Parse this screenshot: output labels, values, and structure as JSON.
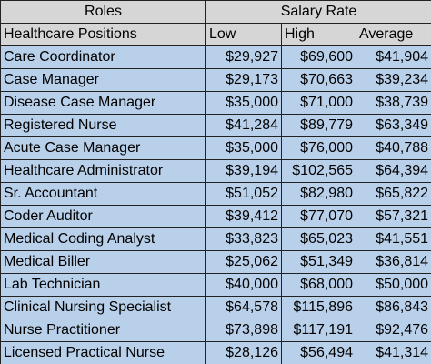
{
  "table": {
    "group_headers": [
      "Roles",
      "Salary Rate"
    ],
    "columns": [
      "Healthcare Positions",
      "Low",
      "High",
      "Average"
    ],
    "rows": [
      [
        "Care Coordinator",
        "$29,927",
        "$69,600",
        "$41,904"
      ],
      [
        "Case Manager",
        "$29,173",
        "$70,663",
        "$39,234"
      ],
      [
        "Disease Case Manager",
        "$35,000",
        "$71,000",
        "$38,739"
      ],
      [
        "Registered Nurse",
        "$41,284",
        "$89,779",
        "$63,349"
      ],
      [
        "Acute Case Manager",
        "$35,000",
        "$76,000",
        "$40,788"
      ],
      [
        "Healthcare Administrator",
        "$39,194",
        "$102,565",
        "$64,394"
      ],
      [
        "Sr. Accountant",
        "$51,052",
        "$82,980",
        "$65,822"
      ],
      [
        "Coder Auditor",
        "$39,412",
        "$77,070",
        "$57,321"
      ],
      [
        "Medical Coding Analyst",
        "$33,823",
        "$65,023",
        "$41,551"
      ],
      [
        "Medical Biller",
        "$25,062",
        "$51,349",
        "$36,814"
      ],
      [
        "Lab Technician",
        "$40,000",
        "$68,000",
        "$50,000"
      ],
      [
        "Clinical Nursing Specialist",
        "$64,578",
        "$115,896",
        "$86,843"
      ],
      [
        "Nurse Practitioner",
        "$73,898",
        "$117,191",
        "$92,476"
      ],
      [
        "Licensed Practical Nurse",
        "$28,126",
        "$56,494",
        "$41,314"
      ]
    ]
  }
}
